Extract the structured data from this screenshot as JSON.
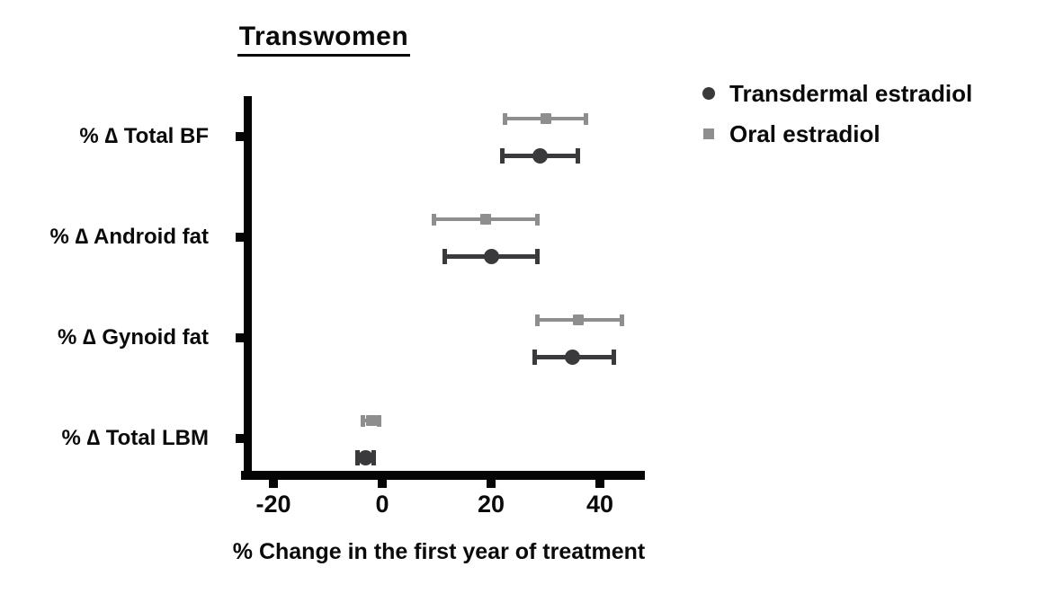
{
  "chart_data": {
    "type": "scatter",
    "subtype": "horizontal-dot-plot-with-error-bars",
    "title": "Transwomen",
    "xlabel": "% Change in the first year of treatment",
    "ylabel": "",
    "categories": [
      "% ∆ Total BF",
      "% ∆ Android fat",
      "% ∆ Gynoid fat",
      "% ∆ Total LBM"
    ],
    "x_ticks": [
      -20,
      0,
      20,
      40
    ],
    "x_tick_labels": [
      "-20",
      "0",
      "20",
      "40"
    ],
    "xlim": [
      -26,
      48
    ],
    "grid": false,
    "legend_position": "top-right",
    "axis_color": "#050505",
    "series": [
      {
        "name": "Transdermal estradiol",
        "marker": "circle",
        "color": "#3a3a3c",
        "points": [
          {
            "category": "% ∆ Total BF",
            "mean": 29,
            "lo": 22,
            "hi": 36
          },
          {
            "category": "% ∆ Android fat",
            "mean": 20,
            "lo": 11.5,
            "hi": 28.5
          },
          {
            "category": "% ∆ Gynoid fat",
            "mean": 35,
            "lo": 28,
            "hi": 42.5
          },
          {
            "category": "% ∆ Total LBM",
            "mean": -3,
            "lo": -4.5,
            "hi": -1.5
          }
        ]
      },
      {
        "name": "Oral estradiol",
        "marker": "square",
        "color": "#8e8e8e",
        "points": [
          {
            "category": "% ∆ Total BF",
            "mean": 30,
            "lo": 22.5,
            "hi": 37.5
          },
          {
            "category": "% ∆ Android fat",
            "mean": 19,
            "lo": 9.5,
            "hi": 28.5
          },
          {
            "category": "% ∆ Gynoid fat",
            "mean": 36,
            "lo": 28.5,
            "hi": 44
          },
          {
            "category": "% ∆ Total LBM",
            "mean": -2,
            "lo": -3.5,
            "hi": -0.5
          }
        ]
      }
    ]
  }
}
